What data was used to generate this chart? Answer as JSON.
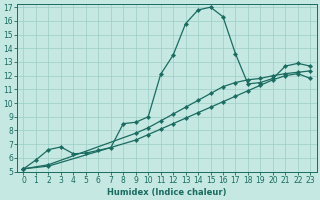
{
  "xlabel": "Humidex (Indice chaleur)",
  "xlim": [
    -0.5,
    23.5
  ],
  "ylim": [
    5,
    17.2
  ],
  "xticks": [
    0,
    1,
    2,
    3,
    4,
    5,
    6,
    7,
    8,
    9,
    10,
    11,
    12,
    13,
    14,
    15,
    16,
    17,
    18,
    19,
    20,
    21,
    22,
    23
  ],
  "yticks": [
    5,
    6,
    7,
    8,
    9,
    10,
    11,
    12,
    13,
    14,
    15,
    16,
    17
  ],
  "bg_color": "#c5e8e2",
  "grid_color": "#9ecec7",
  "line_color": "#1a6b60",
  "curve1_x": [
    0,
    1,
    2,
    3,
    4,
    5,
    6,
    7,
    8,
    9,
    10,
    11,
    12,
    13,
    14,
    15,
    16,
    17,
    18,
    19,
    20,
    21,
    22,
    23
  ],
  "curve1_y": [
    5.2,
    5.85,
    6.6,
    6.8,
    6.3,
    6.35,
    6.55,
    6.75,
    8.5,
    8.6,
    9.0,
    12.1,
    13.5,
    15.8,
    16.8,
    17.0,
    16.3,
    13.6,
    11.4,
    11.5,
    11.8,
    12.7,
    12.9,
    12.7
  ],
  "curve2_x": [
    0,
    2,
    9,
    10,
    11,
    12,
    13,
    14,
    15,
    16,
    17,
    18,
    19,
    20,
    21,
    22,
    23
  ],
  "curve2_y": [
    5.2,
    5.5,
    7.8,
    8.2,
    8.7,
    9.2,
    9.7,
    10.2,
    10.7,
    11.2,
    11.5,
    11.7,
    11.8,
    12.0,
    12.15,
    12.25,
    12.35
  ],
  "curve3_x": [
    0,
    2,
    9,
    10,
    11,
    12,
    13,
    14,
    15,
    16,
    17,
    18,
    19,
    20,
    21,
    22,
    23
  ],
  "curve3_y": [
    5.2,
    5.4,
    7.3,
    7.7,
    8.1,
    8.5,
    8.9,
    9.3,
    9.7,
    10.1,
    10.5,
    10.9,
    11.3,
    11.7,
    12.0,
    12.15,
    11.8
  ],
  "linewidth": 0.9,
  "markersize": 2.2,
  "ticksize": 5.5
}
